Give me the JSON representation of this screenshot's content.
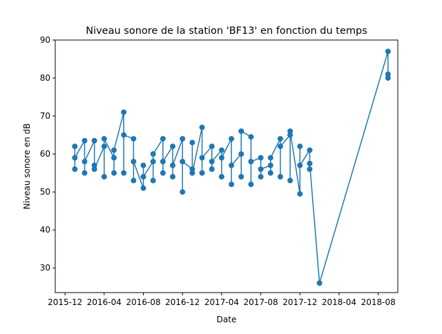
{
  "chart_data": {
    "type": "line",
    "title": "Niveau sonore de la station 'BF13' en fonction du temps",
    "x_label": "Date",
    "y_label": "Niveau sonore en dB",
    "x": [
      "2016-01",
      "2016-01",
      "2016-01",
      "2016-02",
      "2016-02",
      "2016-02",
      "2016-03",
      "2016-03",
      "2016-03",
      "2016-04",
      "2016-04",
      "2016-04",
      "2016-05",
      "2016-05",
      "2016-05",
      "2016-06",
      "2016-06",
      "2016-06",
      "2016-07",
      "2016-07",
      "2016-07",
      "2016-08",
      "2016-08",
      "2016-08",
      "2016-09",
      "2016-09",
      "2016-09",
      "2016-10",
      "2016-10",
      "2016-10",
      "2016-11",
      "2016-11",
      "2016-11",
      "2016-12",
      "2016-12",
      "2016-12",
      "2017-01",
      "2017-01",
      "2017-01",
      "2017-02",
      "2017-02",
      "2017-02",
      "2017-03",
      "2017-03",
      "2017-03",
      "2017-04",
      "2017-04",
      "2017-04",
      "2017-05",
      "2017-05",
      "2017-05",
      "2017-06",
      "2017-06",
      "2017-06",
      "2017-07",
      "2017-07",
      "2017-07",
      "2017-08",
      "2017-08",
      "2017-08",
      "2017-09",
      "2017-09",
      "2017-09",
      "2017-10",
      "2017-10",
      "2017-10",
      "2017-11",
      "2017-11",
      "2017-11",
      "2017-12",
      "2017-12",
      "2017-12",
      "2018-01",
      "2018-01",
      "2018-01",
      "2018-02",
      "2018-09",
      "2018-09",
      "2018-09"
    ],
    "series": [
      {
        "color": "#1f77b4",
        "values": [
          62,
          56,
          59,
          63.5,
          55,
          58,
          63.5,
          57,
          56,
          62,
          54,
          64,
          59,
          55,
          61,
          71,
          55,
          65,
          64,
          53,
          58,
          51,
          57,
          54,
          58,
          53,
          60,
          64,
          55,
          58,
          62,
          54,
          57,
          64,
          50,
          58,
          56,
          63,
          55,
          67,
          55,
          59,
          62,
          56,
          58,
          61,
          54,
          59,
          64,
          52,
          57,
          60,
          54,
          66,
          64.5,
          52,
          58,
          59,
          54,
          56,
          57,
          55,
          59,
          64,
          54,
          62,
          65,
          53,
          66,
          49.5,
          62,
          57,
          61,
          56,
          57.5,
          26,
          87,
          80,
          81
        ]
      }
    ],
    "xlim": [
      "2015-11",
      "2018-10"
    ],
    "xticks": [
      "2015-12",
      "2016-04",
      "2016-08",
      "2016-12",
      "2017-04",
      "2017-08",
      "2017-12",
      "2018-04",
      "2018-08"
    ],
    "ylim": [
      23.5,
      90
    ],
    "yticks": [
      30,
      40,
      50,
      60,
      70,
      80,
      90
    ]
  }
}
